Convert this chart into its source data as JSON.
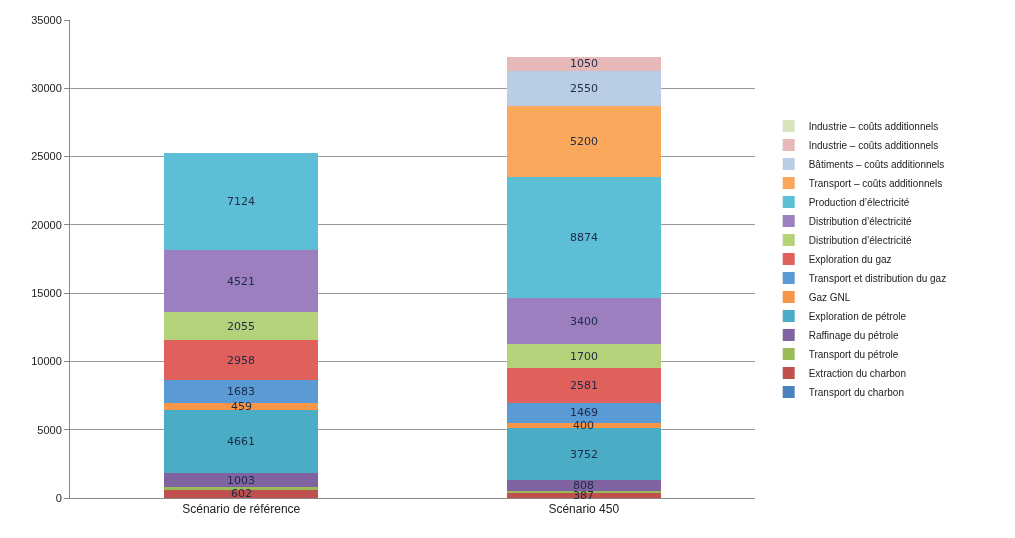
{
  "chart_data": {
    "type": "bar",
    "stacked": true,
    "categories": [
      "Scénario de référence",
      "Scénario 450"
    ],
    "series": [
      {
        "name": "Transport du charbon",
        "color": "#4f81bd",
        "values": [
          null,
          null
        ],
        "value_labels": [
          null,
          null
        ]
      },
      {
        "name": "Extraction du charbon",
        "color": "#c0504d",
        "values": [
          602,
          387
        ],
        "value_labels": [
          "602",
          "387"
        ]
      },
      {
        "name": "Transport du pétrole",
        "color": "#9bbb59",
        "values": [
          200,
          150
        ],
        "value_labels": [
          null,
          null
        ]
      },
      {
        "name": "Raffinage du pétrole",
        "color": "#8064a2",
        "values": [
          1003,
          808
        ],
        "value_labels": [
          "1003",
          "808"
        ]
      },
      {
        "name": "Exploration de pétrole",
        "color": "#4bacc6",
        "values": [
          4661,
          3752
        ],
        "value_labels": [
          "4661",
          "3752"
        ]
      },
      {
        "name": "Gaz GNL",
        "color": "#f79646",
        "values": [
          459,
          400
        ],
        "value_labels": [
          "459",
          "400"
        ]
      },
      {
        "name": "Transport et distribution du gaz",
        "color": "#5b9bd5",
        "values": [
          1683,
          1469
        ],
        "value_labels": [
          "1683",
          "1469"
        ]
      },
      {
        "name": "Exploration du gaz",
        "color": "#e0605c",
        "values": [
          2958,
          2581
        ],
        "value_labels": [
          "2958",
          "2581"
        ]
      },
      {
        "name": "Distribution d’électricité",
        "color": "#b3d27a",
        "values": [
          2055,
          1700
        ],
        "value_labels": [
          "2055",
          "1700"
        ]
      },
      {
        "name": "Distribution d’électricité",
        "color": "#9b7fbf",
        "values": [
          4521,
          3400
        ],
        "value_labels": [
          "4521",
          "3400"
        ]
      },
      {
        "name": "Production d’électricité",
        "color": "#5cbfd6",
        "values": [
          7124,
          8874
        ],
        "value_labels": [
          "7124",
          "8874"
        ]
      },
      {
        "name": "Transport – coûts additionnels",
        "color": "#f9a85c",
        "values": [
          null,
          5200
        ],
        "value_labels": [
          null,
          "5200"
        ]
      },
      {
        "name": "Bâtiments – coûts additionnels",
        "color": "#b9cde5",
        "values": [
          null,
          2550
        ],
        "value_labels": [
          null,
          "2550"
        ]
      },
      {
        "name": "Industrie – coûts additionnels",
        "color": "#e6b9b8",
        "values": [
          null,
          1050
        ],
        "value_labels": [
          null,
          "1050"
        ]
      },
      {
        "name": "Industrie – coûts additionnels",
        "color": "#d7e4bd",
        "values": [
          null,
          null
        ],
        "value_labels": [
          null,
          null
        ]
      }
    ],
    "ylim": [
      0,
      35000
    ],
    "yticks": [
      0,
      5000,
      10000,
      15000,
      20000,
      25000,
      30000,
      35000
    ],
    "grid": "y",
    "legend": "right"
  }
}
